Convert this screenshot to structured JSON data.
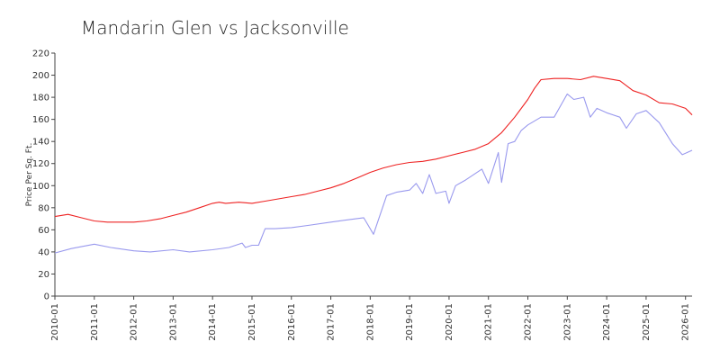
{
  "chart_data": {
    "type": "line",
    "title": "Mandarin Glen vs Jacksonville",
    "xlabel": "",
    "ylabel": "Price Per Sq. Ft.",
    "ylim": [
      0,
      220
    ],
    "yticks": [
      0,
      20,
      40,
      60,
      80,
      100,
      120,
      140,
      160,
      180,
      200,
      220
    ],
    "xlim": [
      "2010-01",
      "2026-03"
    ],
    "xticks": [
      "2010-01",
      "2011-01",
      "2012-01",
      "2013-01",
      "2014-01",
      "2015-01",
      "2016-01",
      "2017-01",
      "2018-01",
      "2019-01",
      "2020-01",
      "2021-01",
      "2022-01",
      "2023-01",
      "2024-01",
      "2025-01",
      "2026-01"
    ],
    "grid": false,
    "legend": "none",
    "series": [
      {
        "color": "#ee2222",
        "points": [
          [
            "2010-01",
            72
          ],
          [
            "2010-05",
            74
          ],
          [
            "2010-09",
            71
          ],
          [
            "2011-01",
            68
          ],
          [
            "2011-05",
            67
          ],
          [
            "2011-09",
            67
          ],
          [
            "2012-01",
            67
          ],
          [
            "2012-05",
            68
          ],
          [
            "2012-09",
            70
          ],
          [
            "2013-01",
            73
          ],
          [
            "2013-05",
            76
          ],
          [
            "2013-09",
            80
          ],
          [
            "2014-01",
            84
          ],
          [
            "2014-03",
            85
          ],
          [
            "2014-05",
            84
          ],
          [
            "2014-09",
            85
          ],
          [
            "2015-01",
            84
          ],
          [
            "2015-05",
            86
          ],
          [
            "2015-09",
            88
          ],
          [
            "2016-01",
            90
          ],
          [
            "2016-05",
            92
          ],
          [
            "2016-09",
            95
          ],
          [
            "2017-01",
            98
          ],
          [
            "2017-05",
            102
          ],
          [
            "2017-09",
            107
          ],
          [
            "2018-01",
            112
          ],
          [
            "2018-05",
            116
          ],
          [
            "2018-09",
            119
          ],
          [
            "2019-01",
            121
          ],
          [
            "2019-05",
            122
          ],
          [
            "2019-09",
            124
          ],
          [
            "2020-01",
            127
          ],
          [
            "2020-05",
            130
          ],
          [
            "2020-09",
            133
          ],
          [
            "2021-01",
            138
          ],
          [
            "2021-05",
            148
          ],
          [
            "2021-09",
            162
          ],
          [
            "2022-01",
            178
          ],
          [
            "2022-03",
            188
          ],
          [
            "2022-05",
            196
          ],
          [
            "2022-09",
            197
          ],
          [
            "2023-01",
            197
          ],
          [
            "2023-05",
            196
          ],
          [
            "2023-09",
            199
          ],
          [
            "2024-01",
            197
          ],
          [
            "2024-05",
            195
          ],
          [
            "2024-09",
            186
          ],
          [
            "2025-01",
            182
          ],
          [
            "2025-05",
            175
          ],
          [
            "2025-09",
            174
          ],
          [
            "2026-01",
            170
          ],
          [
            "2026-03",
            164
          ]
        ]
      },
      {
        "color": "#9999ee",
        "points": [
          [
            "2010-01",
            39
          ],
          [
            "2010-06",
            43
          ],
          [
            "2011-01",
            47
          ],
          [
            "2011-06",
            44
          ],
          [
            "2012-01",
            41
          ],
          [
            "2012-06",
            40
          ],
          [
            "2013-01",
            42
          ],
          [
            "2013-06",
            40
          ],
          [
            "2014-01",
            42
          ],
          [
            "2014-06",
            44
          ],
          [
            "2014-10",
            48
          ],
          [
            "2014-11",
            44
          ],
          [
            "2015-01",
            46
          ],
          [
            "2015-03",
            46
          ],
          [
            "2015-05",
            61
          ],
          [
            "2015-08",
            61
          ],
          [
            "2016-01",
            62
          ],
          [
            "2016-06",
            64
          ],
          [
            "2017-01",
            67
          ],
          [
            "2017-06",
            69
          ],
          [
            "2017-11",
            71
          ],
          [
            "2018-02",
            56
          ],
          [
            "2018-06",
            91
          ],
          [
            "2018-09",
            94
          ],
          [
            "2019-01",
            96
          ],
          [
            "2019-03",
            102
          ],
          [
            "2019-05",
            93
          ],
          [
            "2019-07",
            110
          ],
          [
            "2019-09",
            93
          ],
          [
            "2019-12",
            95
          ],
          [
            "2020-01",
            84
          ],
          [
            "2020-03",
            100
          ],
          [
            "2020-06",
            105
          ],
          [
            "2020-11",
            115
          ],
          [
            "2021-01",
            102
          ],
          [
            "2021-04",
            130
          ],
          [
            "2021-05",
            103
          ],
          [
            "2021-07",
            138
          ],
          [
            "2021-09",
            140
          ],
          [
            "2021-11",
            150
          ],
          [
            "2022-01",
            155
          ],
          [
            "2022-05",
            162
          ],
          [
            "2022-09",
            162
          ],
          [
            "2023-01",
            183
          ],
          [
            "2023-03",
            178
          ],
          [
            "2023-06",
            180
          ],
          [
            "2023-08",
            162
          ],
          [
            "2023-10",
            170
          ],
          [
            "2024-01",
            166
          ],
          [
            "2024-05",
            162
          ],
          [
            "2024-07",
            152
          ],
          [
            "2024-10",
            165
          ],
          [
            "2025-01",
            168
          ],
          [
            "2025-05",
            157
          ],
          [
            "2025-09",
            138
          ],
          [
            "2025-12",
            128
          ],
          [
            "2026-03",
            132
          ]
        ]
      }
    ]
  }
}
